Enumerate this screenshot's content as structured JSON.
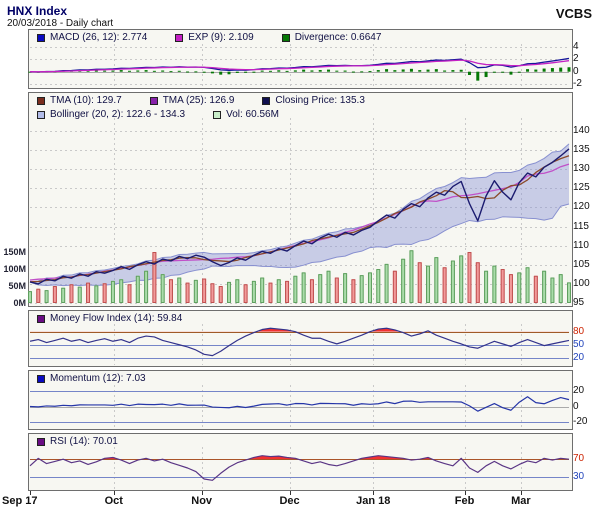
{
  "header": {
    "title": "HNX Index",
    "subtitle": "20/03/2018 - Daily chart",
    "brand": "VCBS"
  },
  "panels": {
    "macd": {
      "legend": [
        {
          "text": "MACD (26, 12): 2.774",
          "color": "#0a0ac0"
        },
        {
          "text": "EXP (9): 2.109",
          "color": "#c421c4"
        },
        {
          "text": "Divergence: 0.6647",
          "color": "#067806"
        }
      ],
      "yticks": [
        {
          "v": 4,
          "label": "4",
          "color": "#111111"
        },
        {
          "v": 2,
          "label": "2",
          "color": "#111111"
        },
        {
          "v": 0,
          "label": "0",
          "color": "#111111"
        },
        {
          "v": -2,
          "label": "-2",
          "color": "#111111"
        }
      ]
    },
    "main": {
      "legend_row1": [
        {
          "text": "TMA (10): 129.7",
          "color": "#7a2d1e"
        },
        {
          "text": "TMA (25): 126.9",
          "color": "#8822aa"
        },
        {
          "text": "Closing Price: 135.3",
          "color": "#10104f"
        }
      ],
      "legend_row2": [
        {
          "text": "Bollinger (20, 2): 122.6 - 134.3",
          "color": "#b2bce8"
        },
        {
          "text": "Vol: 60.56M",
          "color": "#c9eec9"
        }
      ],
      "yticks_right": [
        {
          "v": 140,
          "label": "140"
        },
        {
          "v": 135,
          "label": "135"
        },
        {
          "v": 130,
          "label": "130"
        },
        {
          "v": 125,
          "label": "125"
        },
        {
          "v": 120,
          "label": "120"
        },
        {
          "v": 115,
          "label": "115"
        },
        {
          "v": 110,
          "label": "110"
        },
        {
          "v": 105,
          "label": "105"
        },
        {
          "v": 100,
          "label": "100"
        },
        {
          "v": 95,
          "label": "95"
        }
      ],
      "yticks_left": [
        {
          "v": 150,
          "label": "150M"
        },
        {
          "v": 100,
          "label": "100M"
        },
        {
          "v": 50,
          "label": "50M"
        },
        {
          "v": 0,
          "label": "0M"
        }
      ]
    },
    "mfi": {
      "legend": [
        {
          "text": "Money Flow Index (14): 59.84",
          "color": "#6a0d84"
        }
      ],
      "yticks": [
        {
          "v": 80,
          "label": "80",
          "color": "#cc2200"
        },
        {
          "v": 50,
          "label": "50",
          "color": "#2244bb"
        },
        {
          "v": 20,
          "label": "20",
          "color": "#2244bb"
        }
      ]
    },
    "momentum": {
      "legend": [
        {
          "text": "Momentum (12): 7.03",
          "color": "#0a0ac0"
        }
      ],
      "yticks": [
        {
          "v": 20,
          "label": "20",
          "color": "#111111"
        },
        {
          "v": 0,
          "label": "0",
          "color": "#111111"
        },
        {
          "v": -20,
          "label": "-20",
          "color": "#111111"
        }
      ]
    },
    "rsi": {
      "legend": [
        {
          "text": "RSI (14): 70.01",
          "color": "#6a0d84"
        }
      ],
      "yticks": [
        {
          "v": 70,
          "label": "70",
          "color": "#cc2200"
        },
        {
          "v": 30,
          "label": "30",
          "color": "#2244bb"
        }
      ]
    }
  },
  "x_axis": {
    "ticks": [
      {
        "label": "Sep 17",
        "idx": 0,
        "align": "left"
      },
      {
        "label": "Oct",
        "idx": 10.1
      },
      {
        "label": "Nov",
        "idx": 20.7
      },
      {
        "label": "Dec",
        "idx": 31.3
      },
      {
        "label": "Jan 18",
        "idx": 41.4
      },
      {
        "label": "Feb",
        "idx": 52.4
      },
      {
        "label": "Mar",
        "idx": 59.2
      }
    ]
  },
  "chart_data": {
    "type": "line",
    "title": "HNX Index daily chart with MACD, Bollinger/TMA, Volume, MFI, Momentum, RSI",
    "x_labels": [
      "Sep 17",
      "Oct",
      "Nov",
      "Dec",
      "Jan 18",
      "Feb",
      "Mar"
    ],
    "ylim_price": [
      95,
      140
    ],
    "ylim_macd": [
      -2,
      4
    ],
    "ylim_mfi": [
      20,
      80
    ],
    "ylim_momentum": [
      -20,
      20
    ],
    "ylim_rsi": [
      30,
      70
    ],
    "close": [
      100.5,
      100.0,
      101.2,
      100.8,
      102.0,
      101.5,
      102.6,
      102.0,
      103.2,
      102.8,
      103.5,
      104.5,
      103.8,
      105.0,
      105.8,
      105.2,
      106.5,
      106.0,
      107.2,
      106.6,
      107.5,
      107.0,
      105.8,
      104.8,
      105.6,
      106.8,
      106.2,
      107.5,
      108.5,
      108.0,
      109.2,
      108.6,
      110.0,
      111.2,
      110.5,
      112.0,
      113.0,
      112.2,
      113.5,
      112.8,
      114.0,
      114.8,
      116.5,
      118.0,
      117.2,
      119.5,
      121.0,
      120.2,
      122.5,
      124.0,
      123.2,
      125.5,
      126.8,
      121.0,
      116.5,
      123.0,
      127.0,
      124.0,
      122.0,
      126.5,
      129.0,
      128.0,
      130.5,
      131.8,
      133.5,
      135.3
    ],
    "volume_m": [
      35,
      42,
      38,
      50,
      45,
      55,
      48,
      60,
      52,
      58,
      65,
      70,
      55,
      80,
      95,
      150,
      85,
      70,
      75,
      60,
      68,
      72,
      58,
      50,
      62,
      70,
      55,
      65,
      75,
      60,
      70,
      65,
      80,
      90,
      70,
      85,
      95,
      75,
      88,
      70,
      82,
      90,
      100,
      115,
      95,
      130,
      155,
      120,
      110,
      135,
      105,
      125,
      140,
      150,
      120,
      95,
      110,
      100,
      85,
      90,
      105,
      80,
      95,
      75,
      85,
      60.56
    ],
    "mfi": [
      58,
      62,
      55,
      60,
      65,
      58,
      62,
      55,
      60,
      64,
      58,
      62,
      55,
      65,
      70,
      68,
      60,
      55,
      50,
      45,
      38,
      28,
      25,
      35,
      48,
      60,
      70,
      78,
      85,
      88,
      86,
      84,
      80,
      72,
      65,
      65,
      58,
      52,
      58,
      65,
      72,
      80,
      86,
      88,
      84,
      78,
      70,
      75,
      82,
      72,
      65,
      58,
      52,
      45,
      42,
      50,
      58,
      52,
      46,
      55,
      62,
      55,
      48,
      52,
      56,
      59.84
    ],
    "rsi": [
      55,
      72,
      60,
      65,
      70,
      62,
      66,
      58,
      64,
      72,
      74,
      68,
      60,
      68,
      72,
      66,
      70,
      62,
      56,
      50,
      42,
      25,
      22,
      38,
      52,
      62,
      68,
      74,
      78,
      76,
      77,
      74,
      72,
      66,
      60,
      64,
      58,
      55,
      60,
      66,
      72,
      75,
      78,
      76,
      74,
      72,
      68,
      70,
      74,
      66,
      60,
      55,
      72,
      50,
      40,
      55,
      65,
      55,
      48,
      58,
      66,
      62,
      72,
      68,
      72,
      70.01
    ],
    "indicator_values": {
      "macd": 2.774,
      "exp": 2.109,
      "divergence": 0.6647,
      "tma10": 129.7,
      "tma25": 126.9,
      "closing_price": 135.3,
      "bollinger_low": 122.6,
      "bollinger_high": 134.3,
      "volume": "60.56M",
      "mfi": 59.84,
      "momentum": 7.03,
      "rsi": 70.01
    },
    "colors": {
      "grid": "#c9c9c9",
      "close": "#1b1b6f",
      "tma10": "#8a4a2a",
      "tma25": "#c050c8",
      "boll_fill": "rgba(135,145,215,0.42)",
      "boll_edge": "#8890d0",
      "vol_up": "#aadcaa",
      "vol_up_edge": "#5f9f5f",
      "vol_down": "#f29a9a",
      "vol_down_edge": "#c05050",
      "macd": "#15159a",
      "exp": "#c421c4",
      "hist": "#067806",
      "mfi": "#33338c",
      "momentum": "#2535a8",
      "rsi": "#5a3585",
      "fill_red": "#f23030",
      "thr_brown": "#a05a28",
      "thr_blue": "#7585c8",
      "zero_line": "#aaaaaa"
    }
  }
}
